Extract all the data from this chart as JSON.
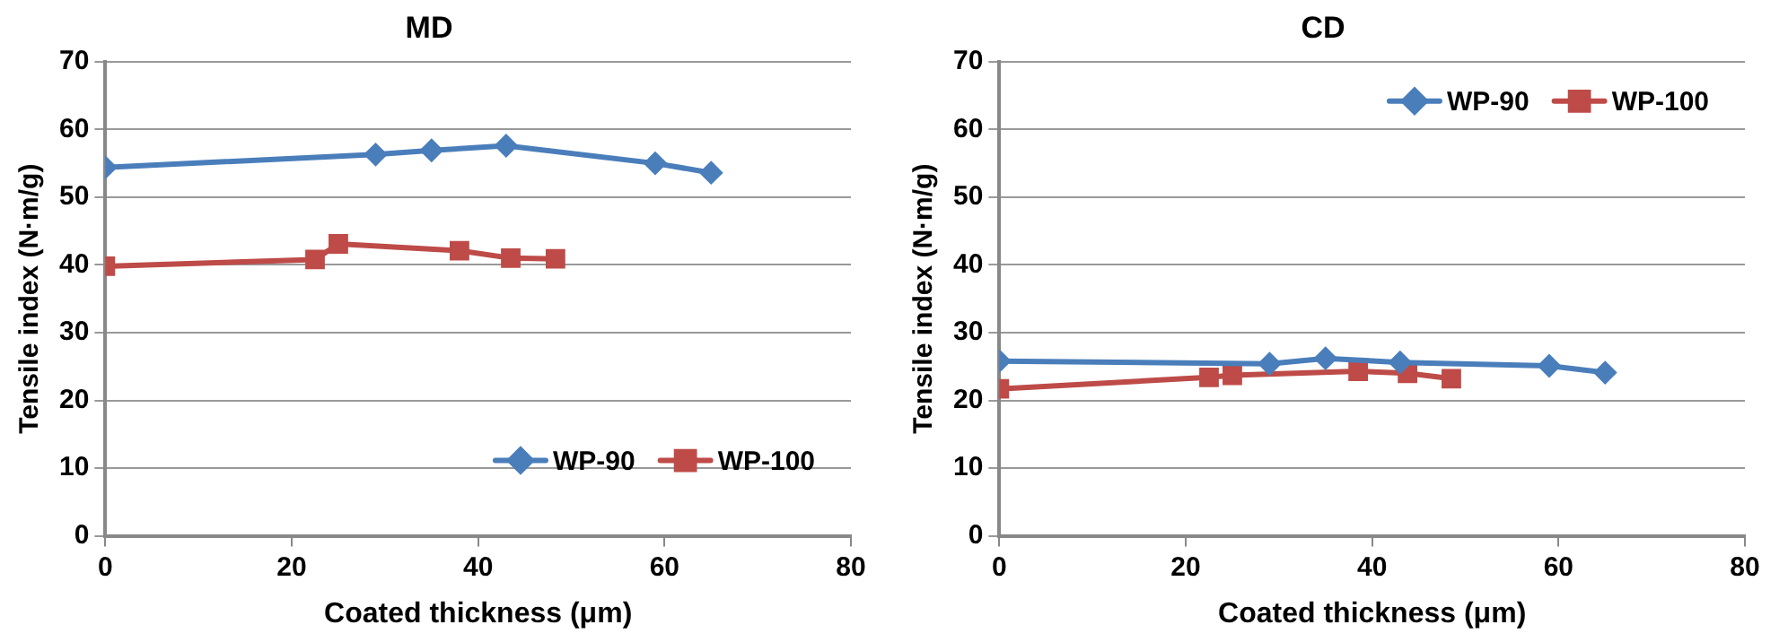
{
  "chart_data": [
    {
      "type": "line",
      "title": "MD",
      "xlabel": "Coated thickness (μm)",
      "ylabel": "Tensile index (N·m/g)",
      "xlim": [
        0,
        80
      ],
      "xticks": [
        0,
        20,
        40,
        60,
        80
      ],
      "ylim": [
        0,
        70
      ],
      "yticks": [
        0,
        10,
        20,
        30,
        40,
        50,
        60,
        70
      ],
      "grid": "y",
      "legend": "bottom right",
      "series": [
        {
          "name": "WP-90",
          "color": "#4a7ebb",
          "marker": "diamond",
          "x": [
            0,
            29,
            35,
            43,
            59,
            65
          ],
          "values": [
            54.4,
            56.3,
            56.9,
            57.6,
            55,
            53.6
          ]
        },
        {
          "name": "WP-100",
          "color": "#be4b48",
          "marker": "square",
          "x": [
            0,
            22.5,
            25,
            38,
            43.5,
            48.3
          ],
          "values": [
            39.8,
            40.8,
            43.1,
            42.1,
            41,
            40.9
          ]
        }
      ]
    },
    {
      "type": "line",
      "title": "CD",
      "xlabel": "Coated thickness (μm)",
      "ylabel": "Tensile index (N·m/g)",
      "xlim": [
        0,
        80
      ],
      "xticks": [
        0,
        20,
        40,
        60,
        80
      ],
      "ylim": [
        0,
        70
      ],
      "yticks": [
        0,
        10,
        20,
        30,
        40,
        50,
        60,
        70
      ],
      "grid": "y",
      "legend": "top right",
      "series": [
        {
          "name": "WP-90",
          "color": "#4a7ebb",
          "marker": "diamond",
          "x": [
            0,
            29,
            35,
            43,
            59,
            65
          ],
          "values": [
            25.8,
            25.4,
            26.2,
            25.6,
            25.1,
            24.1
          ]
        },
        {
          "name": "WP-100",
          "color": "#be4b48",
          "marker": "square",
          "x": [
            0,
            22.5,
            25,
            38.5,
            43.8,
            48.5
          ],
          "values": [
            21.7,
            23.4,
            23.7,
            24.3,
            24,
            23.2
          ]
        }
      ]
    }
  ]
}
